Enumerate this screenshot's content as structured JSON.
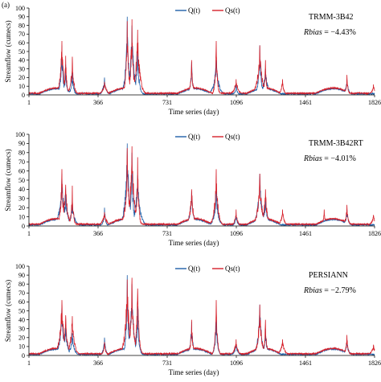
{
  "panel_label": "(a)",
  "colors": {
    "observed": "#1f5fa8",
    "simulated": "#d6202a",
    "axis": "#000000",
    "grid": "#cccccc"
  },
  "chart_data": [
    {
      "type": "line",
      "product": "TRMM-3B42",
      "rbias_label": "Rbias",
      "rbias_value": " = −4.43%",
      "xlabel": "Time series (day)",
      "ylabel": "Streamflow (cumecs)",
      "xlim": [
        1,
        1826
      ],
      "ylim": [
        0,
        100
      ],
      "xticks": [
        "1",
        "366",
        "731",
        "1096",
        "1461",
        "1826"
      ],
      "yticks": [
        "0",
        "10",
        "20",
        "30",
        "40",
        "50",
        "60",
        "70",
        "80",
        "90",
        "100"
      ],
      "legend": [
        "Q(t)",
        "Qs(t)"
      ],
      "legend_position": "top-center",
      "series": [
        {
          "name": "Q(t)",
          "peaks": [
            [
              175,
              57
            ],
            [
              195,
              35
            ],
            [
              230,
              25
            ],
            [
              290,
              3
            ],
            [
              400,
              20
            ],
            [
              520,
              90
            ],
            [
              545,
              80
            ],
            [
              575,
              55
            ],
            [
              860,
              38
            ],
            [
              990,
              40
            ],
            [
              1095,
              12
            ],
            [
              1220,
              57
            ],
            [
              1250,
              30
            ],
            [
              1500,
              2
            ],
            [
              1680,
              18
            ]
          ]
        },
        {
          "name": "Qs(t)",
          "peaks": [
            [
              175,
              62
            ],
            [
              195,
              45
            ],
            [
              230,
              44
            ],
            [
              400,
              15
            ],
            [
              520,
              85
            ],
            [
              545,
              87
            ],
            [
              575,
              75
            ],
            [
              860,
              40
            ],
            [
              990,
              62
            ],
            [
              1095,
              18
            ],
            [
              1220,
              57
            ],
            [
              1250,
              40
            ],
            [
              1340,
              18
            ],
            [
              1680,
              23
            ],
            [
              1820,
              12
            ]
          ]
        }
      ]
    },
    {
      "type": "line",
      "product": "TRMM-3B42RT",
      "rbias_label": "Rbias",
      "rbias_value": " = −4.01%",
      "xlabel": "Time series (day)",
      "ylabel": "Streamflow (cumecs)",
      "xlim": [
        1,
        1826
      ],
      "ylim": [
        0,
        100
      ],
      "xticks": [
        "1",
        "366",
        "731",
        "1096",
        "1461",
        "1826"
      ],
      "yticks": [
        "0",
        "10",
        "20",
        "30",
        "40",
        "50",
        "60",
        "70",
        "80",
        "90",
        "100"
      ],
      "legend": [
        "Q(t)",
        "Qs(t)"
      ],
      "legend_position": "top-center",
      "series": [
        {
          "name": "Q(t)",
          "peaks": [
            [
              175,
              57
            ],
            [
              195,
              35
            ],
            [
              230,
              25
            ],
            [
              400,
              20
            ],
            [
              520,
              90
            ],
            [
              545,
              80
            ],
            [
              575,
              55
            ],
            [
              860,
              38
            ],
            [
              990,
              40
            ],
            [
              1095,
              12
            ],
            [
              1220,
              57
            ],
            [
              1250,
              30
            ],
            [
              1500,
              2
            ],
            [
              1680,
              18
            ]
          ]
        },
        {
          "name": "Qs(t)",
          "peaks": [
            [
              175,
              62
            ],
            [
              195,
              45
            ],
            [
              230,
              44
            ],
            [
              400,
              15
            ],
            [
              520,
              85
            ],
            [
              545,
              87
            ],
            [
              575,
              75
            ],
            [
              860,
              40
            ],
            [
              990,
              62
            ],
            [
              1095,
              18
            ],
            [
              1220,
              57
            ],
            [
              1250,
              40
            ],
            [
              1340,
              18
            ],
            [
              1560,
              18
            ],
            [
              1680,
              23
            ],
            [
              1820,
              12
            ]
          ]
        }
      ]
    },
    {
      "type": "line",
      "product": "PERSIANN",
      "rbias_label": "Rbias",
      "rbias_value": " = −2.79%",
      "xlabel": "Time series (day)",
      "ylabel": "Streamflow (cumecs)",
      "xlim": [
        1,
        1826
      ],
      "ylim": [
        0,
        100
      ],
      "xticks": [
        "1",
        "366",
        "731",
        "1096",
        "1461",
        "1826"
      ],
      "yticks": [
        "0",
        "10",
        "20",
        "30",
        "40",
        "50",
        "60",
        "70",
        "80",
        "90",
        "100"
      ],
      "legend": [
        "Q(t)",
        "Qs(t)"
      ],
      "legend_position": "top-center",
      "series": [
        {
          "name": "Q(t)",
          "peaks": [
            [
              175,
              57
            ],
            [
              195,
              35
            ],
            [
              230,
              25
            ],
            [
              400,
              20
            ],
            [
              520,
              90
            ],
            [
              545,
              80
            ],
            [
              575,
              55
            ],
            [
              860,
              38
            ],
            [
              990,
              40
            ],
            [
              1095,
              12
            ],
            [
              1220,
              57
            ],
            [
              1250,
              30
            ],
            [
              1500,
              2
            ],
            [
              1680,
              18
            ]
          ]
        },
        {
          "name": "Qs(t)",
          "peaks": [
            [
              175,
              62
            ],
            [
              195,
              45
            ],
            [
              230,
              44
            ],
            [
              400,
              15
            ],
            [
              520,
              85
            ],
            [
              545,
              87
            ],
            [
              575,
              75
            ],
            [
              860,
              40
            ],
            [
              990,
              62
            ],
            [
              1095,
              18
            ],
            [
              1220,
              57
            ],
            [
              1250,
              40
            ],
            [
              1340,
              18
            ],
            [
              1680,
              23
            ],
            [
              1820,
              12
            ]
          ]
        }
      ]
    }
  ]
}
